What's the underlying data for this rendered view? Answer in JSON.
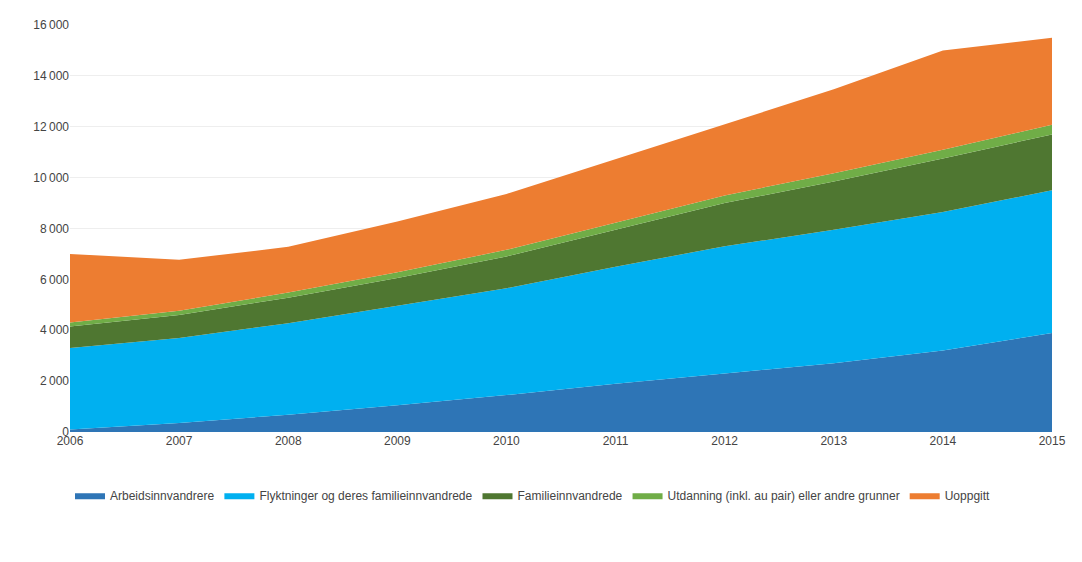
{
  "chart_data": {
    "type": "area",
    "stacked": true,
    "x": [
      2006,
      2007,
      2008,
      2009,
      2010,
      2011,
      2012,
      2013,
      2014,
      2015
    ],
    "series": [
      {
        "name": "Arbeidsinnvandrere",
        "color": "#2E75B6",
        "values": [
          100,
          350,
          680,
          1050,
          1450,
          1900,
          2300,
          2700,
          3200,
          3894
        ]
      },
      {
        "name": "Flyktninger og deres familieinnvandrede",
        "color": "#00B0F0",
        "values": [
          3200,
          3350,
          3600,
          3900,
          4200,
          4600,
          5000,
          5250,
          5450,
          5606
        ]
      },
      {
        "name": "Familieinnvandrede",
        "color": "#4F7731",
        "values": [
          850,
          900,
          1000,
          1100,
          1250,
          1450,
          1700,
          1900,
          2100,
          2200
        ]
      },
      {
        "name": "Utdanning (inkl. au pair) eller andre grunner",
        "color": "#70AD47",
        "values": [
          150,
          170,
          200,
          230,
          260,
          280,
          300,
          320,
          350,
          380
        ]
      },
      {
        "name": "Uoppgitt",
        "color": "#ED7D31",
        "values": [
          2700,
          2000,
          1800,
          2000,
          2200,
          2500,
          2800,
          3300,
          3900,
          3420
        ]
      }
    ],
    "xlim": [
      2006,
      2015
    ],
    "xticks": [
      2006,
      2007,
      2008,
      2009,
      2010,
      2011,
      2012,
      2013,
      2014,
      2015
    ],
    "ylim": [
      0,
      16000
    ],
    "yticks": [
      0,
      {
        "value": 2000,
        "label": "2 000"
      },
      {
        "value": 4000,
        "label": "4 000"
      },
      {
        "value": 6000,
        "label": "6 000"
      },
      {
        "value": 8000,
        "label": "8 000"
      },
      {
        "value": 10000,
        "label": "10 000"
      },
      {
        "value": 12000,
        "label": "12 000"
      },
      {
        "value": 14000,
        "label": "14 000"
      },
      {
        "value": 16000,
        "label": "16 000"
      }
    ],
    "grid": "y",
    "legend": "bottom"
  }
}
